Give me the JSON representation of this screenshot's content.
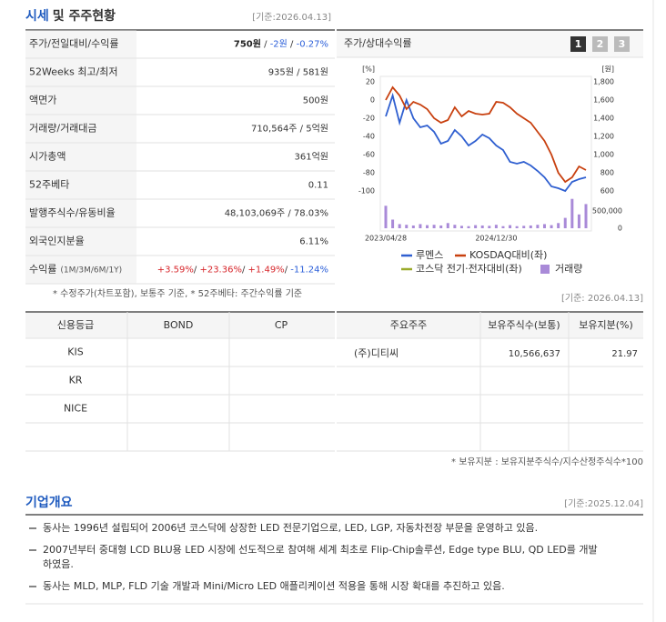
{
  "header": {
    "title_main": "시세",
    "title_rest": "및 주주현황",
    "date": "[기준:2026.04.13]"
  },
  "price_table": {
    "rows": [
      {
        "label": "주가/전일대비/수익률",
        "value": [
          {
            "text": "750원",
            "style": "bold"
          },
          {
            "text": " / ",
            "style": "plain"
          },
          {
            "text": "-2원",
            "style": "down"
          },
          {
            "text": " / ",
            "style": "plain"
          },
          {
            "text": "-0.27%",
            "style": "down"
          }
        ]
      },
      {
        "label": "52Weeks 최고/최저",
        "value": "935원 / 581원"
      },
      {
        "label": "액면가",
        "value": "500원"
      },
      {
        "label": "거래량/거래대금",
        "value": "710,564주 / 5억원"
      },
      {
        "label": "시가총액",
        "value": "361억원"
      },
      {
        "label": "52주베타",
        "value": "0.11"
      },
      {
        "label": "발행주식수/유동비율",
        "value": "48,103,069주 / 78.03%"
      },
      {
        "label": "외국인지분율",
        "value": "6.11%"
      },
      {
        "label": "수익률",
        "label_note": "(1M/3M/6M/1Y)",
        "value": [
          {
            "text": "+3.59%",
            "style": "up"
          },
          {
            "text": "/ ",
            "style": "plain"
          },
          {
            "text": "+23.36%",
            "style": "up"
          },
          {
            "text": "/ ",
            "style": "plain"
          },
          {
            "text": "+1.49%",
            "style": "up"
          },
          {
            "text": "/ ",
            "style": "plain"
          },
          {
            "text": "-11.24%",
            "style": "down"
          }
        ]
      }
    ],
    "note": "* 수정주가(차트포함), 보통주 기준, * 52주베타: 주간수익률 기준"
  },
  "chart_panel": {
    "title": "주가/상대수익률",
    "tabs": [
      "1",
      "2",
      "3"
    ],
    "active_tab": 0
  },
  "chart_data": {
    "type": "line",
    "y_unit": "[%]",
    "y2_unit": "[원]",
    "categories": [
      "2023/04/28",
      null,
      null,
      null,
      null,
      null,
      null,
      null,
      null,
      null,
      null,
      null,
      null,
      null,
      null,
      null,
      "2024/12/30",
      null,
      null,
      null,
      null,
      null,
      null,
      null,
      null,
      null,
      null,
      null,
      null,
      null
    ],
    "ylim": [
      -100,
      20
    ],
    "yticks": [
      20,
      0,
      -20,
      -40,
      -60,
      -80,
      -100
    ],
    "y2lim": [
      600,
      1800
    ],
    "y2ticks": [
      {
        "value": 1800,
        "label": "1,800"
      },
      {
        "value": 1600,
        "label": "1,600"
      },
      {
        "value": 1400,
        "label": "1,400"
      },
      {
        "value": 1200,
        "label": "1,200"
      },
      {
        "value": 1000,
        "label": "1,000"
      },
      800,
      600
    ],
    "y3lim": [
      0,
      1000000
    ],
    "y3ticks": [
      {
        "value": 500000,
        "label": "500,000"
      },
      0
    ],
    "series": [
      {
        "name": "루멘스",
        "color": "#2f5fd0",
        "axis": "y2",
        "values": [
          1420,
          1650,
          1350,
          1600,
          1400,
          1300,
          1320,
          1250,
          1120,
          1150,
          1270,
          1200,
          1100,
          1150,
          1220,
          1180,
          1100,
          1050,
          920,
          900,
          920,
          880,
          820,
          750,
          650,
          630,
          600,
          700,
          730,
          750
        ]
      },
      {
        "name": "KOSDAQ대비(좌)",
        "color": "#c8400f",
        "axis": "y",
        "values": [
          0,
          14,
          5,
          -10,
          -2,
          -5,
          -10,
          -20,
          -25,
          -22,
          -8,
          -18,
          -12,
          -15,
          -16,
          -15,
          -2,
          -3,
          -8,
          -15,
          -20,
          -25,
          -35,
          -45,
          -60,
          -80,
          -90,
          -85,
          -73,
          -77
        ]
      },
      {
        "name": "코스닥 전기·전자대비(좌)",
        "color": "#9aaa2a",
        "axis": "y",
        "values": [
          null,
          null,
          null,
          null,
          null,
          null,
          null,
          null,
          null,
          null,
          null,
          null,
          null,
          null,
          null,
          null,
          null,
          null,
          null,
          null,
          null,
          null,
          null,
          null,
          null,
          null,
          null,
          null,
          null,
          null
        ]
      },
      {
        "name": "거래량",
        "color": "#a98ad8",
        "axis": "y3",
        "type": "bar",
        "values": [
          650000,
          250000,
          120000,
          100000,
          80000,
          120000,
          90000,
          100000,
          80000,
          150000,
          100000,
          70000,
          60000,
          90000,
          80000,
          70000,
          100000,
          60000,
          90000,
          60000,
          70000,
          80000,
          100000,
          120000,
          90000,
          150000,
          300000,
          850000,
          400000,
          700000
        ]
      }
    ]
  },
  "credit_table": {
    "headers": [
      "신용등급",
      "BOND",
      "CP"
    ],
    "rows": [
      [
        "KIS"
      ],
      [
        "KR"
      ],
      [
        "NICE"
      ]
    ]
  },
  "holders_table": {
    "date": "[기준: 2026.04.13]",
    "headers": [
      "주요주주",
      "보유주식수(보통)",
      "보유지분(%)"
    ],
    "rows": [
      [
        "(주)디티씨",
        "10,566,637",
        "21.97"
      ]
    ],
    "note": "* 보유지분 : 보유지분주식수/지수산정주식수*100"
  },
  "company": {
    "title": "기업개요",
    "date": "[기준:2025.12.04]",
    "items": [
      [
        "동사는 1996년 설립되어 2006년 코스닥에 상장한 LED 전문기업으로, LED, LGP, 자동차전장 부문을 운영하고 있음."
      ],
      [
        "2007년부터 중대형 LCD BLU용 LED 시장에 선도적으로 참여해 세계 최초로 Flip-Chip솔루션, Edge type BLU, QD LED를 개발",
        "하였음."
      ],
      [
        "동사는 MLD, MLP, FLD 기술 개발과 Mini/Micro LED 애플리케이션 적용을 통해 시장 확대를 추진하고 있음."
      ]
    ]
  }
}
